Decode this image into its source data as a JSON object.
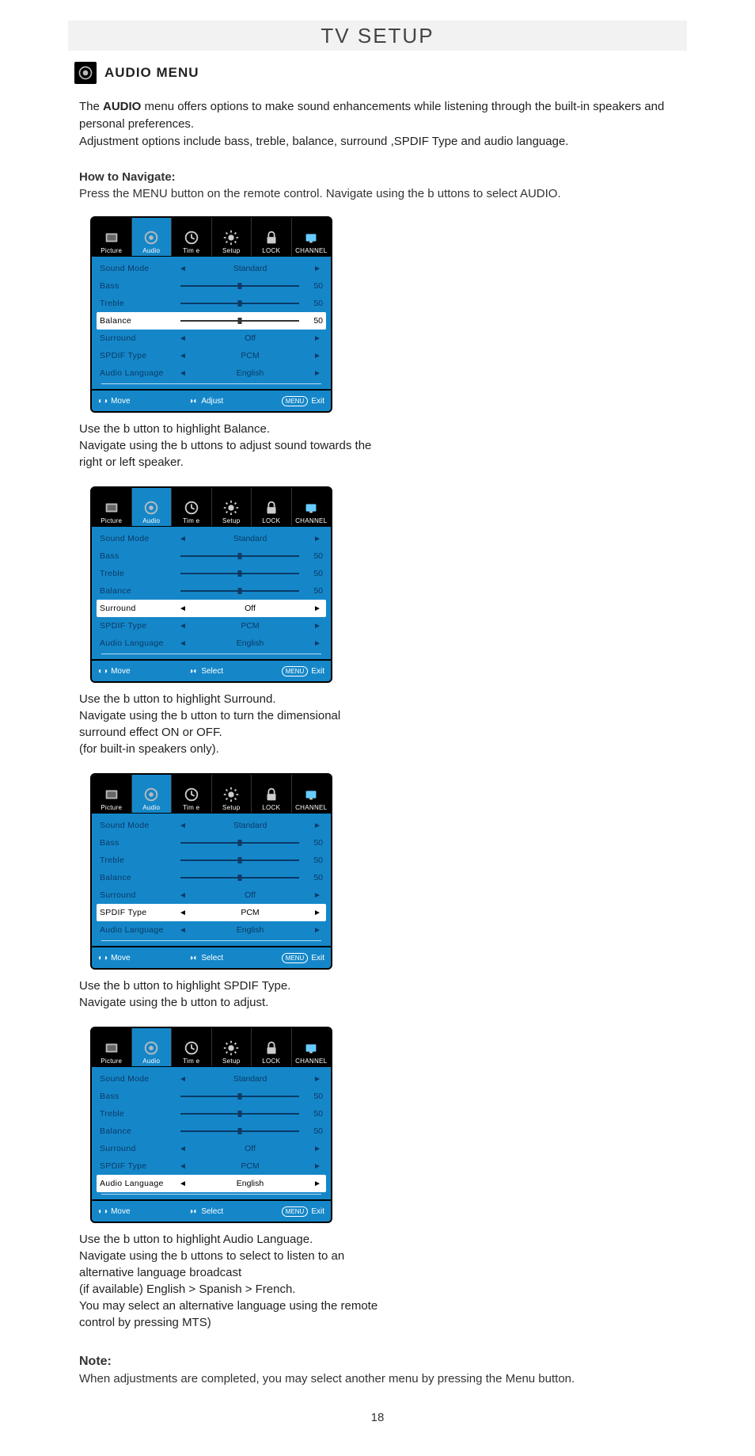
{
  "page": {
    "title": "TV SETUP",
    "section_title": "AUDIO MENU",
    "page_number": "18"
  },
  "intro": {
    "line1_pre": "The ",
    "line1_bold": "AUDIO",
    "line1_post": " menu offers options to make sound enhancements while listening through the built-in speakers and personal preferences.",
    "line2": "Adjustment options include bass, treble, balance, surround ,SPDIF Type and audio language."
  },
  "navigate": {
    "heading": "How to Navigate:",
    "text": "Press the MENU button on the remote control. Navigate using the      b    uttons to select AUDIO."
  },
  "tabs": [
    {
      "key": "picture",
      "label": "Picture"
    },
    {
      "key": "audio",
      "label": "Audio"
    },
    {
      "key": "time",
      "label": "Tim e"
    },
    {
      "key": "setup",
      "label": "Setup"
    },
    {
      "key": "lock",
      "label": "LOCK"
    },
    {
      "key": "channel",
      "label": "CHANNEL"
    }
  ],
  "menu_labels": {
    "sound_mode": "Sound Mode",
    "bass": "Bass",
    "treble": "Treble",
    "balance": "Balance",
    "surround": "Surround",
    "spdif": "SPDIF Type",
    "lang": "Audio Language"
  },
  "menu_values": {
    "sound_mode": "Standard",
    "bass": "50",
    "treble": "50",
    "balance": "50",
    "surround": "Off",
    "spdif": "PCM",
    "lang": "English"
  },
  "footer": {
    "move": "Move",
    "adjust": "Adjust",
    "select": "Select",
    "menu": "MENU",
    "exit": "Exit"
  },
  "panels": [
    {
      "selected": "balance",
      "footer_mid": "Adjust",
      "caption": "Use the  b    utton to highlight Balance.\nNavigate using the      b    uttons to adjust sound towards the right or left speaker."
    },
    {
      "selected": "surround",
      "footer_mid": "Select",
      "caption": "Use the  b    utton to highlight Surround.\nNavigate using the  b    utton to turn the dimensional surround effect ON or OFF.\n(for built-in speakers only)."
    },
    {
      "selected": "spdif",
      "footer_mid": "Select",
      "caption": "Use the  b    utton to highlight SPDIF Type.\nNavigate using the  b    utton to adjust."
    },
    {
      "selected": "lang",
      "footer_mid": "Select",
      "caption": "Use the  b    utton to highlight Audio Language.\nNavigate using the      b    uttons to select to listen to an alternative language broadcast\n(if available) English > Spanish > French.\nYou may select an alternative language using the remote control by pressing MTS)"
    }
  ],
  "note": {
    "heading": "Note:",
    "text": "When adjustments are completed, you may select another menu by pressing the Menu button."
  },
  "style": {
    "osd_bg": "#1587c9",
    "osd_text": "#0a3a66",
    "sel_bg": "#ffffff"
  }
}
